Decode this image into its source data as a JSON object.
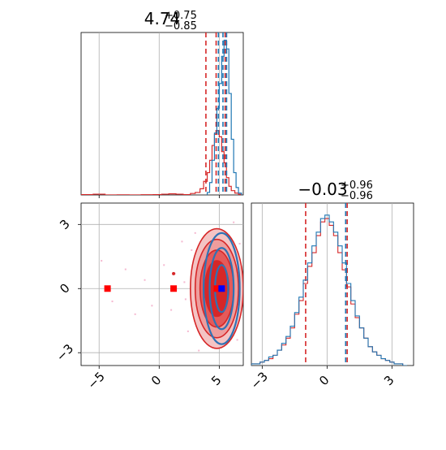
{
  "chart_data": [
    {
      "panel": "top-left-marginal",
      "type": "histogram",
      "title": {
        "median": "4.74",
        "plus": "+0.75",
        "minus": "−0.85"
      },
      "xlim": [
        -6.5,
        7.0
      ],
      "x_ticks": [
        -5,
        0,
        5
      ],
      "series": [
        {
          "name": "",
          "color": "#d62728",
          "bins": [
            [
              -6.5,
              0.3
            ],
            [
              -5.5,
              0.6
            ],
            [
              -4.5,
              0.0
            ],
            [
              -3.5,
              0.1
            ],
            [
              -2.5,
              0.0
            ],
            [
              -1.5,
              0.2
            ],
            [
              -0.5,
              0.3
            ],
            [
              0.2,
              0.6
            ],
            [
              0.8,
              0.9
            ],
            [
              1.4,
              0.6
            ],
            [
              2.0,
              0.3
            ],
            [
              2.6,
              1.2
            ],
            [
              3.0,
              2.0
            ],
            [
              3.4,
              5.0
            ],
            [
              3.7,
              11.0
            ],
            [
              4.0,
              18.0
            ],
            [
              4.2,
              28.0
            ],
            [
              4.4,
              40.0
            ],
            [
              4.6,
              49.0
            ],
            [
              4.8,
              52.0
            ],
            [
              5.0,
              47.0
            ],
            [
              5.2,
              35.0
            ],
            [
              5.4,
              26.0
            ],
            [
              5.6,
              14.0
            ],
            [
              5.8,
              7.0
            ],
            [
              6.0,
              3.5
            ],
            [
              6.3,
              1.5
            ],
            [
              6.6,
              0.5
            ]
          ],
          "quantile_lines": [
            3.89,
            4.74,
            5.49
          ]
        },
        {
          "name": "",
          "color": "#1f77b4",
          "bins": [
            [
              4.0,
              2.0
            ],
            [
              4.2,
              10.0
            ],
            [
              4.4,
              28.0
            ],
            [
              4.6,
              50.0
            ],
            [
              4.8,
              70.0
            ],
            [
              5.0,
              90.0
            ],
            [
              5.2,
              112.0
            ],
            [
              5.4,
              125.0
            ],
            [
              5.6,
              118.0
            ],
            [
              5.8,
              82.0
            ],
            [
              6.0,
              45.0
            ],
            [
              6.2,
              18.0
            ],
            [
              6.4,
              6.0
            ],
            [
              6.6,
              1.5
            ]
          ],
          "quantile_lines": [
            4.93,
            5.31,
            5.61
          ]
        }
      ]
    },
    {
      "panel": "bottom-right-marginal",
      "type": "histogram",
      "title": {
        "median": "−0.03",
        "plus": "+0.96",
        "minus": "−0.96"
      },
      "xlim": [
        -3.5,
        4.0
      ],
      "x_ticks": [
        -3,
        0,
        3
      ],
      "series": [
        {
          "name": "",
          "color": "#d62728",
          "quantile_lines": [
            -0.99,
            0.93
          ],
          "bins": [
            [
              -3.5,
              1
            ],
            [
              -3.3,
              1
            ],
            [
              -3.1,
              2
            ],
            [
              -2.9,
              3
            ],
            [
              -2.7,
              4
            ],
            [
              -2.5,
              6
            ],
            [
              -2.3,
              9
            ],
            [
              -2.1,
              12
            ],
            [
              -1.9,
              16
            ],
            [
              -1.7,
              22
            ],
            [
              -1.5,
              30
            ],
            [
              -1.3,
              38
            ],
            [
              -1.1,
              48
            ],
            [
              -0.9,
              58
            ],
            [
              -0.7,
              66
            ],
            [
              -0.5,
              76
            ],
            [
              -0.3,
              84
            ],
            [
              -0.1,
              86
            ],
            [
              0.1,
              82
            ],
            [
              0.3,
              76
            ],
            [
              0.5,
              66
            ],
            [
              0.7,
              56
            ],
            [
              0.9,
              46
            ],
            [
              1.1,
              36
            ],
            [
              1.3,
              28
            ],
            [
              1.5,
              22
            ],
            [
              1.7,
              16
            ],
            [
              1.9,
              11
            ],
            [
              2.1,
              8
            ],
            [
              2.3,
              6
            ],
            [
              2.5,
              4
            ],
            [
              2.7,
              3
            ],
            [
              2.9,
              2
            ],
            [
              3.1,
              1
            ],
            [
              3.3,
              1
            ],
            [
              3.5,
              0
            ]
          ]
        },
        {
          "name": "",
          "color": "#1f77b4",
          "quantile_lines": [
            0.86
          ],
          "bins": [
            [
              -3.5,
              1
            ],
            [
              -3.3,
              1
            ],
            [
              -3.1,
              2
            ],
            [
              -2.9,
              3
            ],
            [
              -2.7,
              5
            ],
            [
              -2.5,
              6
            ],
            [
              -2.3,
              9
            ],
            [
              -2.1,
              13
            ],
            [
              -1.9,
              17
            ],
            [
              -1.7,
              23
            ],
            [
              -1.5,
              31
            ],
            [
              -1.3,
              40
            ],
            [
              -1.1,
              50
            ],
            [
              -0.9,
              60
            ],
            [
              -0.7,
              70
            ],
            [
              -0.5,
              78
            ],
            [
              -0.3,
              86
            ],
            [
              -0.1,
              88
            ],
            [
              0.1,
              84
            ],
            [
              0.3,
              78
            ],
            [
              0.5,
              70
            ],
            [
              0.7,
              60
            ],
            [
              0.9,
              48
            ],
            [
              1.1,
              38
            ],
            [
              1.3,
              29
            ],
            [
              1.5,
              22
            ],
            [
              1.7,
              16
            ],
            [
              1.9,
              11
            ],
            [
              2.1,
              8
            ],
            [
              2.3,
              6
            ],
            [
              2.5,
              4
            ],
            [
              2.7,
              3
            ],
            [
              2.9,
              2
            ],
            [
              3.1,
              1
            ],
            [
              3.3,
              1
            ],
            [
              3.5,
              0
            ]
          ]
        }
      ]
    },
    {
      "panel": "bottom-left-2d",
      "type": "scatter",
      "xlim": [
        -6.5,
        7.0
      ],
      "ylim": [
        -3.6,
        4.0
      ],
      "x_ticks": [
        -5,
        0,
        5
      ],
      "y_ticks": [
        -3,
        0,
        3
      ],
      "grid": true,
      "red_contours": [
        {
          "cx": 4.8,
          "cy": 0.0,
          "rx": 2.2,
          "ry": 2.8,
          "fill": "#f4c4c4"
        },
        {
          "cx": 4.8,
          "cy": 0.0,
          "rx": 1.8,
          "ry": 2.3,
          "fill": "#ee9d9d"
        },
        {
          "cx": 4.8,
          "cy": 0.0,
          "rx": 1.4,
          "ry": 1.8,
          "fill": "#e45a5a"
        },
        {
          "cx": 4.8,
          "cy": 0.0,
          "rx": 1.0,
          "ry": 1.3,
          "fill": "#d62728"
        }
      ],
      "blue_contours": [
        {
          "cx": 5.2,
          "cy": 0.0,
          "rx": 1.5,
          "ry": 2.6
        },
        {
          "cx": 5.2,
          "cy": 0.0,
          "rx": 1.0,
          "ry": 1.9
        },
        {
          "cx": 5.2,
          "cy": 0.0,
          "rx": 0.55,
          "ry": 1.1
        }
      ],
      "red_markers": [
        [
          -4.3,
          0.0
        ],
        [
          1.2,
          0.0
        ],
        [
          4.8,
          0.0
        ]
      ],
      "blue_marker": [
        5.2,
        0.0
      ],
      "small_points": [
        [
          -4.8,
          1.3
        ],
        [
          -3.9,
          -0.6
        ],
        [
          -2.8,
          0.9
        ],
        [
          -2.0,
          -1.2
        ],
        [
          -1.2,
          0.4
        ],
        [
          -0.6,
          -0.8
        ],
        [
          0.4,
          1.1
        ],
        [
          1.3,
          0.7
        ],
        [
          1.0,
          -1.0
        ],
        [
          2.1,
          0.3
        ],
        [
          2.4,
          -2.0
        ],
        [
          2.7,
          1.8
        ],
        [
          2.2,
          -0.5
        ],
        [
          3.0,
          2.6
        ],
        [
          6.7,
          2.1
        ],
        [
          6.5,
          -2.4
        ],
        [
          6.8,
          0.5
        ],
        [
          3.3,
          -2.9
        ],
        [
          6.2,
          3.1
        ],
        [
          1.9,
          2.2
        ]
      ]
    }
  ]
}
